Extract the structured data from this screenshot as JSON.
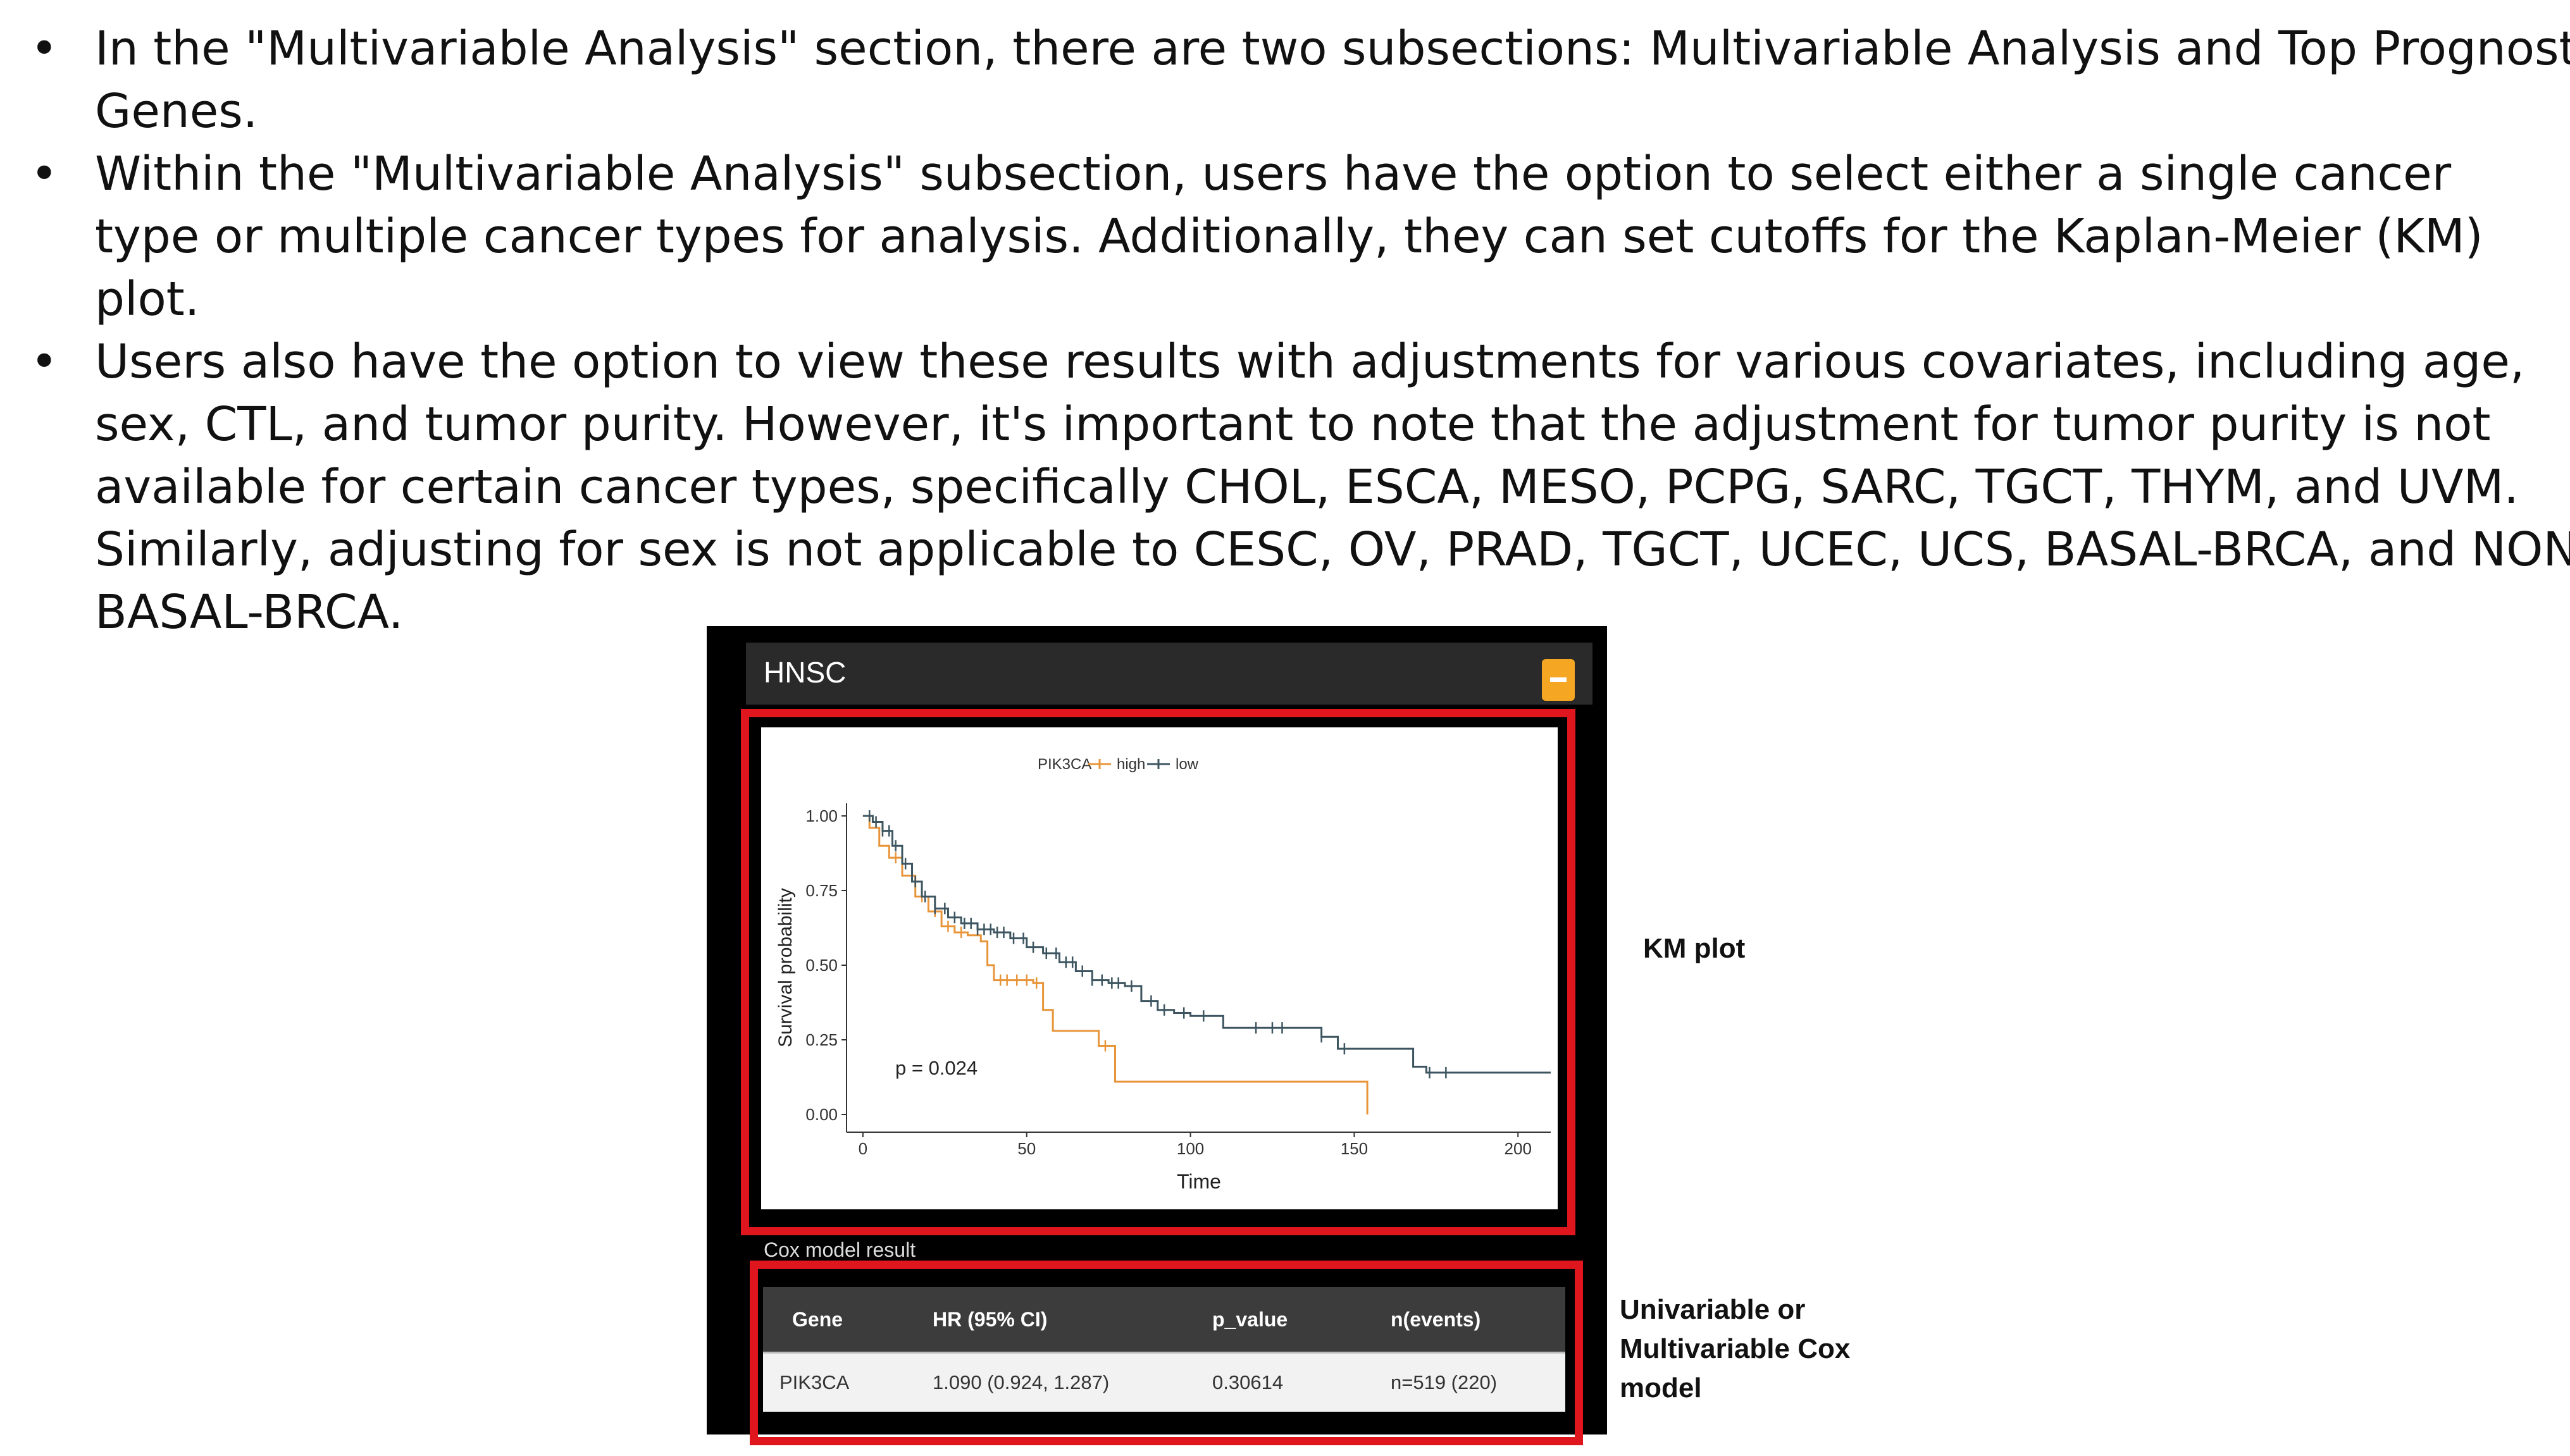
{
  "bullets": [
    "In the \"Multivariable Analysis\" section, there are two subsections: Multivariable Analysis and Top Prognostic Genes.",
    "Within the \"Multivariable Analysis\" subsection, users have the option to select either a single cancer type or multiple cancer types for analysis. Additionally, they can set cutoffs for the Kaplan-Meier (KM) plot.",
    "Users also have the option to view these results with adjustments for various covariates, including age, sex, CTL, and tumor purity. However, it's important to note that the adjustment for tumor purity is not available for certain cancer types, specifically CHOL, ESCA, MESO, PCPG, SARC, TGCT, THYM, and UVM. Similarly, adjusting for sex is not applicable to CESC, OV, PRAD, TGCT, UCEC, UCS, BASAL-BRCA, and NON-BASAL-BRCA."
  ],
  "bullet_glyph": "•",
  "panel": {
    "title": "HNSC",
    "collapse_icon": "minus-icon",
    "accent_color": "#f5a623",
    "frame_color": "#e0161e"
  },
  "chart_data": {
    "type": "line",
    "legend_title": "PIK3CA",
    "legend_position": "top",
    "series": [
      {
        "name": "high",
        "color": "#e8953a",
        "points": [
          [
            0,
            1.0
          ],
          [
            2,
            0.96
          ],
          [
            5,
            0.9
          ],
          [
            8,
            0.86
          ],
          [
            12,
            0.8
          ],
          [
            16,
            0.73
          ],
          [
            20,
            0.68
          ],
          [
            24,
            0.63
          ],
          [
            28,
            0.61
          ],
          [
            32,
            0.6
          ],
          [
            36,
            0.58
          ],
          [
            38,
            0.5
          ],
          [
            40,
            0.45
          ],
          [
            45,
            0.45
          ],
          [
            52,
            0.44
          ],
          [
            55,
            0.35
          ],
          [
            58,
            0.28
          ],
          [
            70,
            0.28
          ],
          [
            72,
            0.23
          ],
          [
            76,
            0.23
          ],
          [
            77,
            0.11
          ],
          [
            154,
            0.11
          ],
          [
            154,
            0.0
          ]
        ],
        "censor_x": [
          10,
          18,
          22,
          26,
          30,
          42,
          44,
          47,
          50,
          53,
          74
        ]
      },
      {
        "name": "low",
        "color": "#3d5560",
        "points": [
          [
            0,
            1.0
          ],
          [
            3,
            0.98
          ],
          [
            6,
            0.95
          ],
          [
            9,
            0.9
          ],
          [
            12,
            0.84
          ],
          [
            15,
            0.78
          ],
          [
            18,
            0.73
          ],
          [
            22,
            0.69
          ],
          [
            26,
            0.66
          ],
          [
            30,
            0.64
          ],
          [
            35,
            0.62
          ],
          [
            40,
            0.61
          ],
          [
            45,
            0.59
          ],
          [
            50,
            0.56
          ],
          [
            55,
            0.54
          ],
          [
            60,
            0.51
          ],
          [
            65,
            0.48
          ],
          [
            70,
            0.45
          ],
          [
            75,
            0.44
          ],
          [
            80,
            0.43
          ],
          [
            85,
            0.38
          ],
          [
            90,
            0.35
          ],
          [
            95,
            0.34
          ],
          [
            100,
            0.33
          ],
          [
            110,
            0.33
          ],
          [
            110,
            0.29
          ],
          [
            140,
            0.29
          ],
          [
            140,
            0.26
          ],
          [
            145,
            0.26
          ],
          [
            145,
            0.22
          ],
          [
            158,
            0.22
          ],
          [
            168,
            0.16
          ],
          [
            172,
            0.14
          ],
          [
            210,
            0.14
          ]
        ],
        "censor_x": [
          2,
          4,
          6,
          8,
          10,
          13,
          16,
          19,
          22,
          25,
          28,
          31,
          33,
          35,
          37,
          39,
          41,
          43,
          46,
          49,
          52,
          56,
          59,
          62,
          64,
          67,
          70,
          73,
          76,
          78,
          82,
          88,
          92,
          98,
          104,
          120,
          125,
          128,
          140,
          147,
          173,
          178
        ]
      }
    ],
    "annotation": "p = 0.024",
    "xlabel": "Time",
    "ylabel": "Survival probability",
    "xlim": [
      -5,
      210
    ],
    "ylim": [
      0,
      1.0
    ],
    "x_ticks": [
      "0",
      "50",
      "100",
      "150",
      "200"
    ],
    "y_ticks": [
      "0.00",
      "0.25",
      "0.50",
      "0.75",
      "1.00"
    ],
    "grid": false
  },
  "cox": {
    "caption": "Cox model result",
    "headers": [
      "Gene",
      "HR (95% CI)",
      "p_value",
      "n(events)"
    ],
    "row": [
      "PIK3CA",
      "1.090 (0.924, 1.287)",
      "0.30614",
      "n=519 (220)"
    ]
  },
  "labels": {
    "km": "KM plot",
    "cox_lines": [
      "Univariable or",
      "Multivariable Cox",
      "model"
    ]
  }
}
